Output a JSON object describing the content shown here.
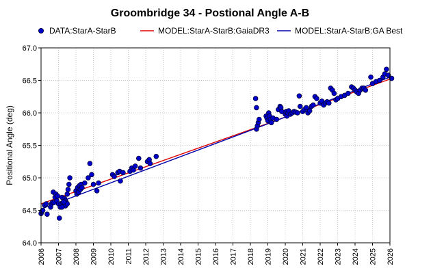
{
  "chart_data": {
    "type": "scatter",
    "title": "Groombridge 34 - Postional Angle A-B",
    "xlabel": "",
    "ylabel": "Positional Angle (deg)",
    "xlim": [
      2006,
      2026
    ],
    "ylim": [
      64.0,
      67.0
    ],
    "xticks": [
      "2006",
      "2007",
      "2008",
      "2009",
      "2010",
      "2011",
      "2012",
      "2013",
      "2014",
      "2015",
      "2016",
      "2017",
      "2018",
      "2019",
      "2020",
      "2021",
      "2022",
      "2023",
      "2024",
      "2025",
      "2026"
    ],
    "yticks": [
      "64.0",
      "64.5",
      "65.0",
      "65.5",
      "66.0",
      "66.5",
      "67.0"
    ],
    "grid": true,
    "legend_position": "top",
    "legend": [
      {
        "label": "DATA:StarA-StarB",
        "kind": "marker",
        "color": "#0000cc"
      },
      {
        "label": "MODEL:StarA-StarB:GaiaDR3",
        "kind": "line",
        "color": "#dd0000"
      },
      {
        "label": "MODEL:StarA-StarB:GA Best",
        "kind": "line",
        "color": "#0000aa"
      }
    ],
    "series": [
      {
        "name": "DATA:StarA-StarB",
        "kind": "scatter",
        "color": "#0000cc",
        "points": [
          [
            2006.0,
            64.45
          ],
          [
            2006.05,
            64.48
          ],
          [
            2006.1,
            64.5
          ],
          [
            2006.2,
            64.58
          ],
          [
            2006.3,
            64.6
          ],
          [
            2006.35,
            64.44
          ],
          [
            2006.55,
            64.55
          ],
          [
            2006.6,
            64.6
          ],
          [
            2006.65,
            64.62
          ],
          [
            2006.7,
            64.78
          ],
          [
            2006.75,
            64.62
          ],
          [
            2006.8,
            64.7
          ],
          [
            2006.85,
            64.75
          ],
          [
            2006.9,
            64.65
          ],
          [
            2006.95,
            64.72
          ],
          [
            2007.0,
            64.6
          ],
          [
            2007.05,
            64.38
          ],
          [
            2007.1,
            64.55
          ],
          [
            2007.15,
            64.6
          ],
          [
            2007.2,
            64.7
          ],
          [
            2007.25,
            64.62
          ],
          [
            2007.3,
            64.58
          ],
          [
            2007.35,
            64.68
          ],
          [
            2007.4,
            64.65
          ],
          [
            2007.45,
            64.62
          ],
          [
            2007.5,
            64.75
          ],
          [
            2007.55,
            64.82
          ],
          [
            2007.6,
            64.9
          ],
          [
            2007.65,
            65.0
          ],
          [
            2007.4,
            64.57
          ],
          [
            2007.5,
            64.6
          ],
          [
            2007.3,
            64.63
          ],
          [
            2007.2,
            64.55
          ],
          [
            2008.0,
            64.8
          ],
          [
            2008.05,
            64.75
          ],
          [
            2008.1,
            64.85
          ],
          [
            2008.15,
            64.78
          ],
          [
            2008.2,
            64.88
          ],
          [
            2008.25,
            64.82
          ],
          [
            2008.3,
            64.9
          ],
          [
            2008.35,
            64.85
          ],
          [
            2008.5,
            64.92
          ],
          [
            2008.7,
            65.0
          ],
          [
            2008.8,
            65.22
          ],
          [
            2008.9,
            65.05
          ],
          [
            2009.0,
            64.9
          ],
          [
            2009.2,
            64.8
          ],
          [
            2009.3,
            64.92
          ],
          [
            2010.1,
            65.05
          ],
          [
            2010.2,
            65.02
          ],
          [
            2010.4,
            65.08
          ],
          [
            2010.5,
            65.1
          ],
          [
            2010.55,
            64.95
          ],
          [
            2010.7,
            65.08
          ],
          [
            2011.1,
            65.1
          ],
          [
            2011.2,
            65.15
          ],
          [
            2011.3,
            65.12
          ],
          [
            2011.4,
            65.18
          ],
          [
            2011.6,
            65.3
          ],
          [
            2011.7,
            65.15
          ],
          [
            2012.1,
            65.25
          ],
          [
            2012.2,
            65.28
          ],
          [
            2012.25,
            65.22
          ],
          [
            2012.6,
            65.33
          ],
          [
            2018.3,
            66.22
          ],
          [
            2018.35,
            66.08
          ],
          [
            2018.35,
            65.75
          ],
          [
            2018.4,
            65.8
          ],
          [
            2018.45,
            65.85
          ],
          [
            2018.5,
            65.9
          ],
          [
            2018.9,
            65.95
          ],
          [
            2018.95,
            65.92
          ],
          [
            2019.0,
            65.88
          ],
          [
            2019.05,
            66.0
          ],
          [
            2019.1,
            65.95
          ],
          [
            2019.15,
            65.9
          ],
          [
            2019.2,
            65.85
          ],
          [
            2019.3,
            65.92
          ],
          [
            2019.5,
            65.9
          ],
          [
            2019.6,
            66.05
          ],
          [
            2019.7,
            66.1
          ],
          [
            2019.75,
            66.08
          ],
          [
            2019.8,
            66.02
          ],
          [
            2020.0,
            65.98
          ],
          [
            2020.05,
            66.02
          ],
          [
            2020.1,
            65.95
          ],
          [
            2020.15,
            66.0
          ],
          [
            2020.2,
            66.03
          ],
          [
            2020.3,
            65.98
          ],
          [
            2020.4,
            66.0
          ],
          [
            2020.5,
            66.02
          ],
          [
            2020.6,
            66.01
          ],
          [
            2020.7,
            66.0
          ],
          [
            2020.8,
            66.26
          ],
          [
            2020.85,
            66.1
          ],
          [
            2021.0,
            66.02
          ],
          [
            2021.1,
            66.05
          ],
          [
            2021.2,
            66.08
          ],
          [
            2021.3,
            66.0
          ],
          [
            2021.4,
            66.03
          ],
          [
            2021.5,
            66.1
          ],
          [
            2021.6,
            66.12
          ],
          [
            2021.7,
            66.25
          ],
          [
            2021.8,
            66.22
          ],
          [
            2022.0,
            66.15
          ],
          [
            2022.1,
            66.18
          ],
          [
            2022.2,
            66.12
          ],
          [
            2022.3,
            66.15
          ],
          [
            2022.4,
            66.17
          ],
          [
            2022.5,
            66.15
          ],
          [
            2022.6,
            66.38
          ],
          [
            2022.7,
            66.35
          ],
          [
            2022.8,
            66.3
          ],
          [
            2022.9,
            66.2
          ],
          [
            2023.0,
            66.22
          ],
          [
            2023.2,
            66.25
          ],
          [
            2023.4,
            66.27
          ],
          [
            2023.6,
            66.3
          ],
          [
            2023.8,
            66.4
          ],
          [
            2023.9,
            66.38
          ],
          [
            2024.0,
            66.35
          ],
          [
            2024.1,
            66.32
          ],
          [
            2024.2,
            66.3
          ],
          [
            2024.3,
            66.35
          ],
          [
            2024.4,
            66.38
          ],
          [
            2024.5,
            66.38
          ],
          [
            2024.6,
            66.35
          ],
          [
            2024.9,
            66.55
          ],
          [
            2025.0,
            66.45
          ],
          [
            2025.2,
            66.48
          ],
          [
            2025.4,
            66.5
          ],
          [
            2025.6,
            66.55
          ],
          [
            2025.7,
            66.6
          ],
          [
            2025.8,
            66.67
          ],
          [
            2025.9,
            66.58
          ],
          [
            2026.1,
            66.53
          ]
        ]
      },
      {
        "name": "MODEL:StarA-StarB:GaiaDR3",
        "kind": "line",
        "color": "#dd0000",
        "points": [
          [
            2006.0,
            64.6
          ],
          [
            2018.3,
            65.77
          ],
          [
            2026.0,
            66.52
          ]
        ]
      },
      {
        "name": "MODEL:StarA-StarB:GA Best",
        "kind": "line",
        "color": "#0000aa",
        "points": [
          [
            2006.0,
            64.52
          ],
          [
            2018.3,
            65.76
          ],
          [
            2026.0,
            66.55
          ]
        ]
      }
    ]
  }
}
